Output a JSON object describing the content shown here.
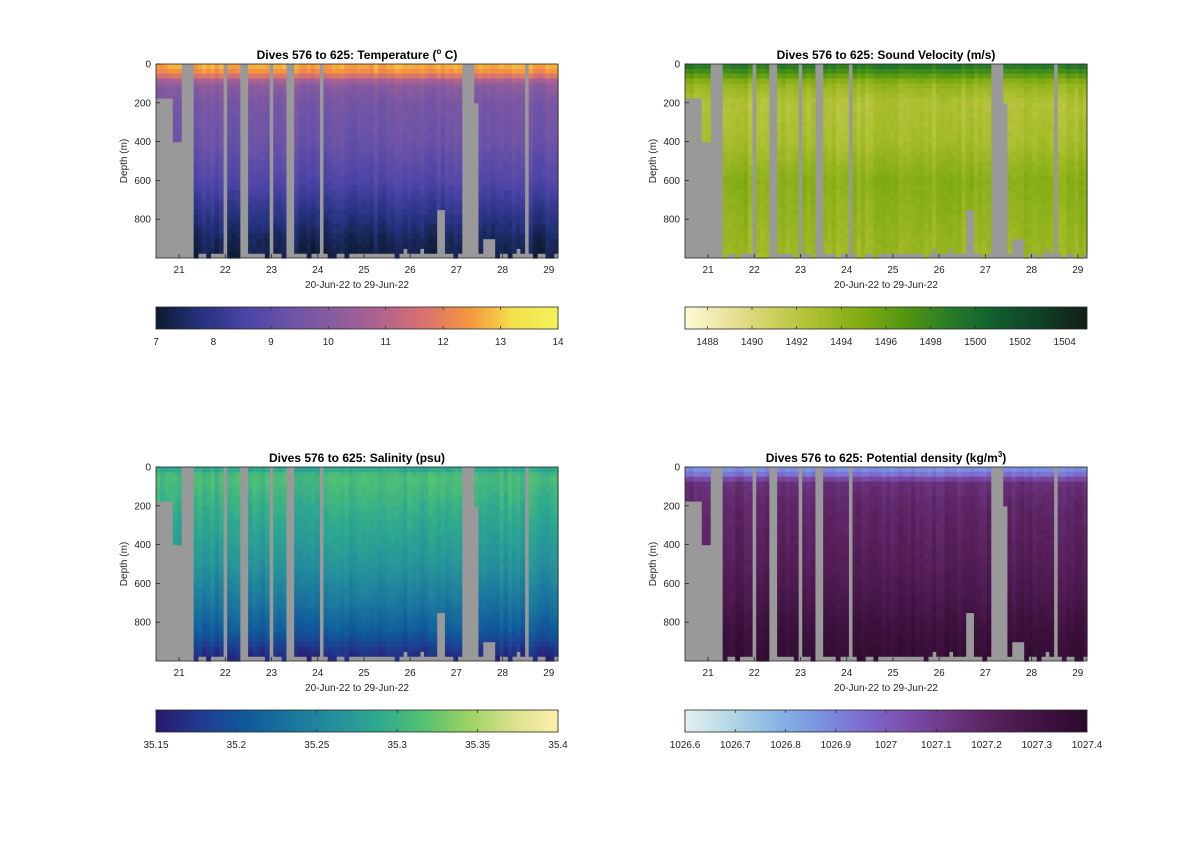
{
  "figure": {
    "background": "#ffffff",
    "missing_color": "#999999",
    "x_axis_label": "20-Jun-22 to 29-Jun-22"
  },
  "chart_data": [
    {
      "type": "heatmap",
      "title_text": "Dives 576 to 625: Temperature (",
      "title_super": "o",
      "title_tail": " C)",
      "xlabel": "20-Jun-22 to 29-Jun-22",
      "ylabel": "Depth (m)",
      "x_ticks": [
        "21",
        "22",
        "23",
        "24",
        "25",
        "26",
        "27",
        "28",
        "29"
      ],
      "y_ticks": [
        "0",
        "200",
        "400",
        "600",
        "800"
      ],
      "xlim": [
        20.5,
        29.2
      ],
      "ylim": [
        0,
        1000
      ],
      "y_reversed": true,
      "colorbar": {
        "ticks": [
          "7",
          "8",
          "9",
          "10",
          "11",
          "12",
          "13",
          "14"
        ],
        "range": [
          7,
          14
        ],
        "colors": [
          "#0b1a2f",
          "#25327e",
          "#4a43a6",
          "#6c53a8",
          "#8a5c9e",
          "#ae6390",
          "#d9716f",
          "#f5953e",
          "#f3e14a",
          "#f2f25c"
        ]
      },
      "profile": {
        "surface_value": 12.8,
        "mixed_layer_m": 60,
        "values_at_depth": [
          [
            0,
            12.8
          ],
          [
            50,
            12.2
          ],
          [
            100,
            10.2
          ],
          [
            200,
            9.6
          ],
          [
            400,
            9.3
          ],
          [
            600,
            8.7
          ],
          [
            750,
            8.0
          ],
          [
            900,
            7.4
          ],
          [
            1000,
            7.2
          ]
        ]
      }
    },
    {
      "type": "heatmap",
      "title_text": "Dives 576 to 625: Sound Velocity (m/s)",
      "title_super": "",
      "title_tail": "",
      "xlabel": "20-Jun-22 to 29-Jun-22",
      "ylabel": "Depth (m)",
      "x_ticks": [
        "21",
        "22",
        "23",
        "24",
        "25",
        "26",
        "27",
        "28",
        "29"
      ],
      "y_ticks": [
        "0",
        "200",
        "400",
        "600",
        "800"
      ],
      "xlim": [
        20.5,
        29.2
      ],
      "ylim": [
        0,
        1000
      ],
      "y_reversed": true,
      "colorbar": {
        "ticks": [
          "1488",
          "1490",
          "1492",
          "1494",
          "1496",
          "1498",
          "1500",
          "1502",
          "1504"
        ],
        "tick_values": [
          1488,
          1490,
          1492,
          1494,
          1496,
          1498,
          1500,
          1502,
          1504
        ],
        "range": [
          1487,
          1505
        ],
        "colors": [
          "#fefbd6",
          "#e9e29a",
          "#cccf5c",
          "#a9bd2c",
          "#7eaa12",
          "#4f9512",
          "#257a2a",
          "#115c2e",
          "#103f26",
          "#121f16"
        ]
      },
      "profile": {
        "values_at_depth": [
          [
            0,
            1499.5
          ],
          [
            40,
            1497.5
          ],
          [
            100,
            1494.0
          ],
          [
            200,
            1492.5
          ],
          [
            400,
            1493.0
          ],
          [
            600,
            1494.5
          ],
          [
            800,
            1494.0
          ],
          [
            1000,
            1493.5
          ]
        ]
      }
    },
    {
      "type": "heatmap",
      "title_text": "Dives 576 to 625: Salinity (psu)",
      "title_super": "",
      "title_tail": "",
      "xlabel": "20-Jun-22 to 29-Jun-22",
      "ylabel": "Depth (m)",
      "x_ticks": [
        "21",
        "22",
        "23",
        "24",
        "25",
        "26",
        "27",
        "28",
        "29"
      ],
      "y_ticks": [
        "0",
        "200",
        "400",
        "600",
        "800"
      ],
      "xlim": [
        20.5,
        29.2
      ],
      "ylim": [
        0,
        1000
      ],
      "y_reversed": true,
      "colorbar": {
        "ticks": [
          "35.15",
          "35.2",
          "35.25",
          "35.3",
          "35.35",
          "35.4"
        ],
        "tick_values": [
          35.15,
          35.2,
          35.25,
          35.3,
          35.35,
          35.4
        ],
        "range": [
          35.15,
          35.4
        ],
        "colors": [
          "#2a186c",
          "#1f3b8f",
          "#10599a",
          "#1a749e",
          "#258f9c",
          "#2fa98f",
          "#55c271",
          "#9dd264",
          "#d9e28e",
          "#fdefa9"
        ]
      },
      "profile": {
        "values_at_depth": [
          [
            0,
            35.28
          ],
          [
            50,
            35.31
          ],
          [
            150,
            35.3
          ],
          [
            300,
            35.285
          ],
          [
            500,
            35.265
          ],
          [
            700,
            35.235
          ],
          [
            850,
            35.205
          ],
          [
            950,
            35.17
          ],
          [
            1000,
            35.16
          ]
        ]
      }
    },
    {
      "type": "heatmap",
      "title_text": "Dives 576 to 625: Potential density (kg/m",
      "title_super": "3",
      "title_tail": ")",
      "xlabel": "20-Jun-22 to 29-Jun-22",
      "ylabel": "Depth (m)",
      "x_ticks": [
        "21",
        "22",
        "23",
        "24",
        "25",
        "26",
        "27",
        "28",
        "29"
      ],
      "y_ticks": [
        "0",
        "200",
        "400",
        "600",
        "800"
      ],
      "xlim": [
        20.5,
        29.2
      ],
      "ylim": [
        0,
        1000
      ],
      "y_reversed": true,
      "colorbar": {
        "ticks": [
          "1026.6",
          "1026.7",
          "1026.8",
          "1026.9",
          "1027",
          "1027.1",
          "1027.2",
          "1027.3",
          "1027.4"
        ],
        "tick_values": [
          1026.6,
          1026.7,
          1026.8,
          1026.9,
          1027.0,
          1027.1,
          1027.2,
          1027.3,
          1027.4
        ],
        "range": [
          1026.6,
          1027.4
        ],
        "colors": [
          "#e6f0f0",
          "#b5d8e6",
          "#8ab8e4",
          "#7a93e0",
          "#7d6ccf",
          "#7a4daa",
          "#6c347f",
          "#561f5a",
          "#3f1240",
          "#2a0a2a"
        ]
      },
      "profile": {
        "values_at_depth": [
          [
            0,
            1026.85
          ],
          [
            40,
            1026.95
          ],
          [
            80,
            1027.15
          ],
          [
            200,
            1027.19
          ],
          [
            500,
            1027.23
          ],
          [
            700,
            1027.28
          ],
          [
            850,
            1027.33
          ],
          [
            1000,
            1027.36
          ]
        ]
      }
    }
  ]
}
